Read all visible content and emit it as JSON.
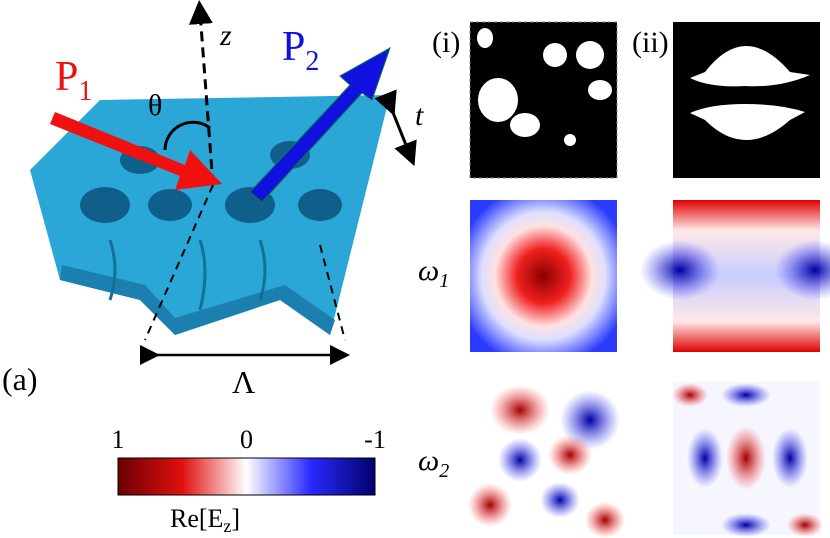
{
  "panel_label": "(a)",
  "beam_in": {
    "letter": "P",
    "sub": "1"
  },
  "beam_out": {
    "letter": "P",
    "sub": "2"
  },
  "angle": "θ",
  "axis": "z",
  "thickness": "t",
  "period": "Λ",
  "columns": [
    "(i)",
    "(ii)"
  ],
  "rows": [
    {
      "letter": "ω",
      "sub": "1"
    },
    {
      "letter": "ω",
      "sub": "2"
    }
  ],
  "colorbar": {
    "lim": [
      1,
      -1
    ],
    "ticks": [
      1,
      0,
      -1
    ],
    "label": {
      "main": "Re[E",
      "sub": "z",
      "end": "]"
    }
  }
}
